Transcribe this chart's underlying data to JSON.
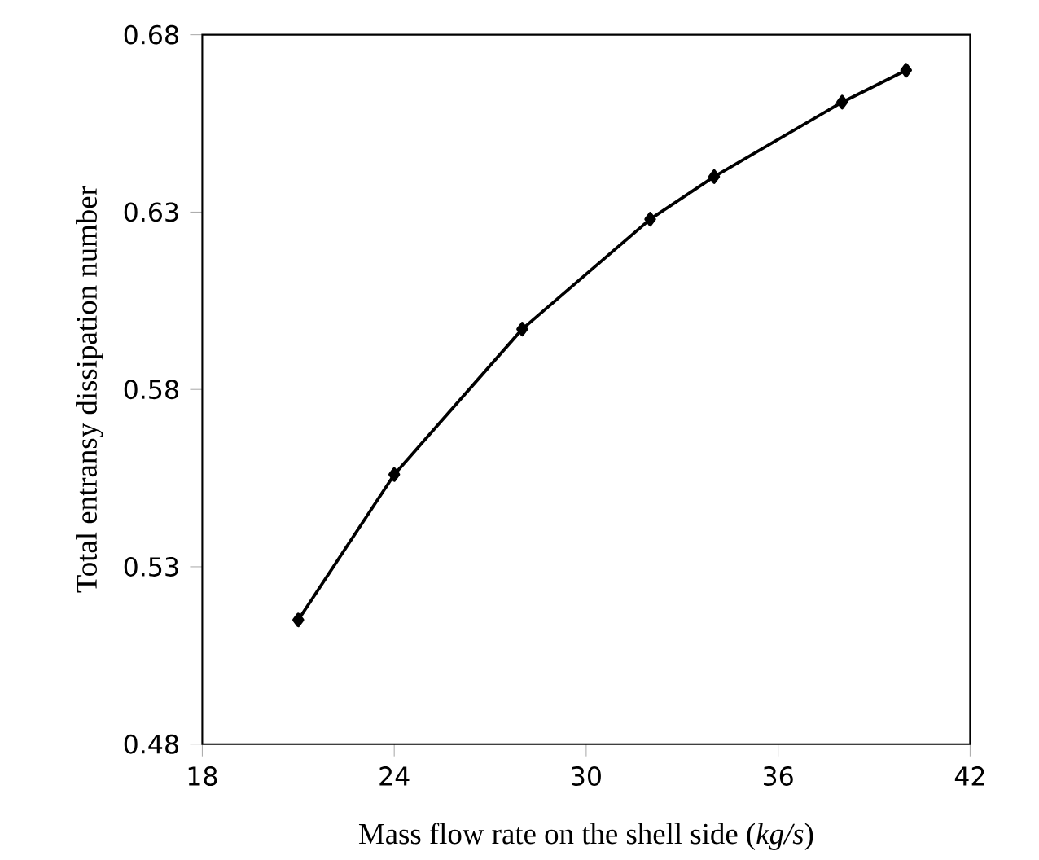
{
  "chart_data": {
    "type": "line",
    "xlabel": "Mass flow rate on the shell side (*kg/s*)",
    "ylabel": "Total entransy dissipation number",
    "x": [
      21,
      24,
      28,
      32,
      34,
      38,
      40
    ],
    "values": [
      0.515,
      0.556,
      0.597,
      0.628,
      0.64,
      0.661,
      0.67
    ],
    "color": "#000000",
    "marker": "diamond",
    "line_style": "solid",
    "grid": false,
    "xlim": [
      18,
      42
    ],
    "xticks": [
      18,
      24,
      30,
      36,
      42
    ],
    "ylim": [
      0.48,
      0.68
    ],
    "yticks": [
      0.48,
      0.53,
      0.58,
      0.63,
      0.68
    ]
  }
}
